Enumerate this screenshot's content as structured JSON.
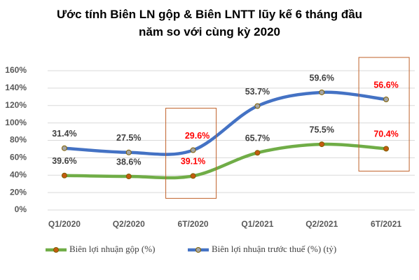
{
  "chart_data": {
    "type": "stacked_line",
    "title": "Ước tính Biên LN gộp & Biên LNTT lũy kế 6 tháng đầu năm so với cùng kỳ 2020",
    "categories": [
      "Q1/2020",
      "Q2/2020",
      "6T/2020",
      "Q1/2021",
      "Q2/2021",
      "6T/2021"
    ],
    "series": [
      {
        "name": "Biên lợi nhuận gộp (%)",
        "color": "#70ad47",
        "marker_color": "#c55a11",
        "values": [
          39.6,
          38.6,
          39.1,
          65.7,
          75.5,
          70.4
        ],
        "value_labels": [
          "39.6%",
          "38.6%",
          "39.1%",
          "65.7%",
          "75.5%",
          "70.4%"
        ]
      },
      {
        "name": "Biên lợi nhuận trước thuế (%) (tỷ)",
        "color": "#4472c4",
        "marker_color": "#a5a5a5",
        "values": [
          31.4,
          27.5,
          29.6,
          53.7,
          59.6,
          56.6
        ],
        "value_labels": [
          "31.4%",
          "27.5%",
          "29.6%",
          "53.7%",
          "59.6%",
          "56.6%"
        ]
      }
    ],
    "ylim": [
      0,
      160
    ],
    "yticks": [
      {
        "value": 0,
        "label": "0%"
      },
      {
        "value": 20,
        "label": "20%"
      },
      {
        "value": 40,
        "label": "40%"
      },
      {
        "value": 60,
        "label": "60%"
      },
      {
        "value": 80,
        "label": "80%"
      },
      {
        "value": 100,
        "label": "100%"
      },
      {
        "value": 120,
        "label": "120%"
      },
      {
        "value": 140,
        "label": "140%"
      },
      {
        "value": 160,
        "label": "160%"
      }
    ],
    "grid": true,
    "legend": "bottom",
    "highlight_indices": [
      2,
      5
    ],
    "highlight_color": "#ff0000",
    "highlight_box_color": "#c0622a"
  }
}
